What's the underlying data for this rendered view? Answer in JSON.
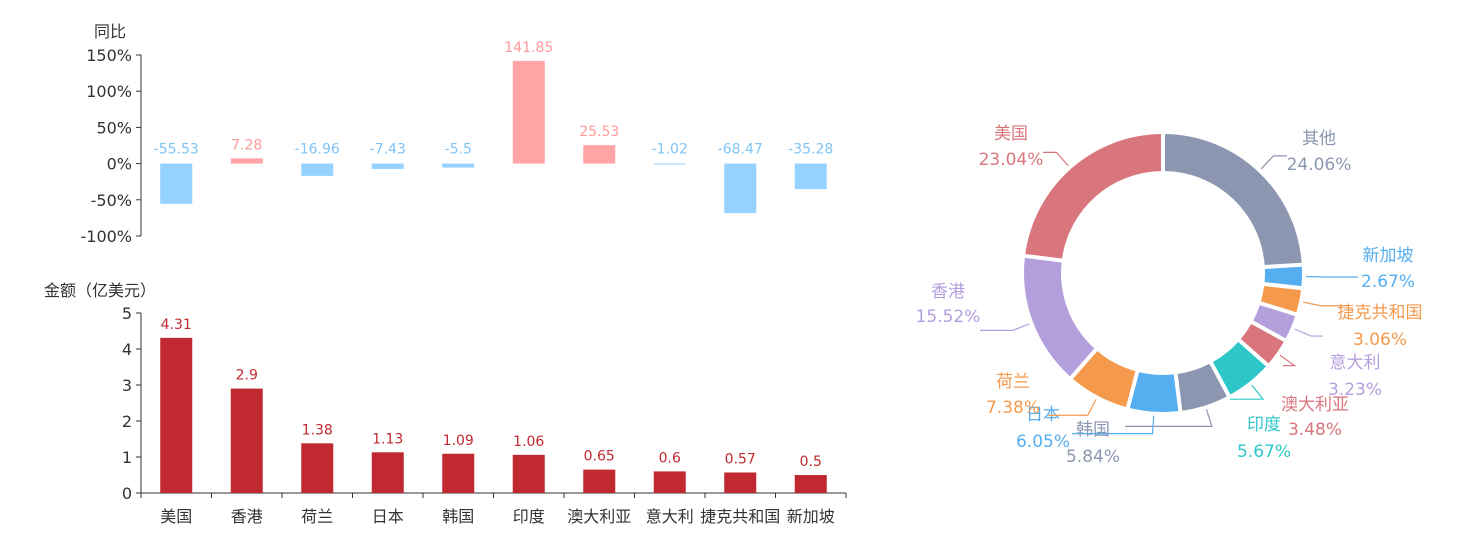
{
  "chart_data": [
    {
      "type": "bar",
      "ylabel": "同比",
      "ylim": [
        -100,
        150
      ],
      "yticks": [
        "150%",
        "100%",
        "50%",
        "0%",
        "-50%",
        "-100%"
      ],
      "ytick_values": [
        150,
        100,
        50,
        0,
        -50,
        -100
      ],
      "categories": [
        "美国",
        "香港",
        "荷兰",
        "日本",
        "韩国",
        "印度",
        "澳大利亚",
        "意大利",
        "捷克共和国",
        "新加坡"
      ],
      "values": [
        -55.53,
        7.28,
        -16.96,
        -7.43,
        -5.5,
        141.85,
        25.53,
        -1.02,
        -68.47,
        -35.28
      ],
      "value_labels": [
        "-55.53",
        "7.28",
        "-16.96",
        "-7.43",
        "-5.5",
        "141.85",
        "25.53",
        "-1.02",
        "-68.47",
        "-35.28"
      ],
      "colors": {
        "positive": "#ffa5a5",
        "negative": "#96d2ff",
        "positive_label": "#ff9999",
        "negative_label": "#7fc4f5"
      },
      "grid": false
    },
    {
      "type": "bar",
      "ylabel": "金额（亿美元）",
      "ylim": [
        0,
        5
      ],
      "yticks": [
        "5",
        "4",
        "3",
        "2",
        "1",
        "0"
      ],
      "ytick_values": [
        5,
        4,
        3,
        2,
        1,
        0
      ],
      "categories": [
        "美国",
        "香港",
        "荷兰",
        "日本",
        "韩国",
        "印度",
        "澳大利亚",
        "意大利",
        "捷克共和国",
        "新加坡"
      ],
      "values": [
        4.31,
        2.9,
        1.38,
        1.13,
        1.09,
        1.06,
        0.65,
        0.6,
        0.57,
        0.5
      ],
      "value_labels": [
        "4.31",
        "2.9",
        "1.38",
        "1.13",
        "1.09",
        "1.06",
        "0.65",
        "0.6",
        "0.57",
        "0.5"
      ],
      "colors": {
        "bar": "#c0292f",
        "label": "#c0292f"
      },
      "grid": false
    },
    {
      "type": "pie",
      "donut": true,
      "slices": [
        {
          "name": "其他",
          "value": 24.06,
          "pct": "24.06%",
          "color": "#8c96b0",
          "label_color": "#8c96b0"
        },
        {
          "name": "新加坡",
          "value": 2.67,
          "pct": "2.67%",
          "color": "#55aef0",
          "label_color": "#55aef0"
        },
        {
          "name": "捷克共和国",
          "value": 3.06,
          "pct": "3.06%",
          "color": "#f5994c",
          "label_color": "#f5994c"
        },
        {
          "name": "意大利",
          "value": 3.23,
          "pct": "3.23%",
          "color": "#b49fdd",
          "label_color": "#b49fdd"
        },
        {
          "name": "澳大利亚",
          "value": 3.48,
          "pct": "3.48%",
          "color": "#d9767d",
          "label_color": "#d9767d"
        },
        {
          "name": "印度",
          "value": 5.67,
          "pct": "5.67%",
          "color": "#2ec7c9",
          "label_color": "#2ec7c9"
        },
        {
          "name": "韩国",
          "value": 5.84,
          "pct": "5.84%",
          "color": "#8c96b0",
          "label_color": "#8c96b0"
        },
        {
          "name": "日本",
          "value": 6.05,
          "pct": "6.05%",
          "color": "#55aef0",
          "label_color": "#55aef0"
        },
        {
          "name": "荷兰",
          "value": 7.38,
          "pct": "7.38%",
          "color": "#f5994c",
          "label_color": "#f5994c"
        },
        {
          "name": "香港",
          "value": 15.52,
          "pct": "15.52%",
          "color": "#b49fdd",
          "label_color": "#b49fdd"
        },
        {
          "name": "美国",
          "value": 23.04,
          "pct": "23.04%",
          "color": "#d9767d",
          "label_color": "#d9767d"
        }
      ]
    }
  ]
}
